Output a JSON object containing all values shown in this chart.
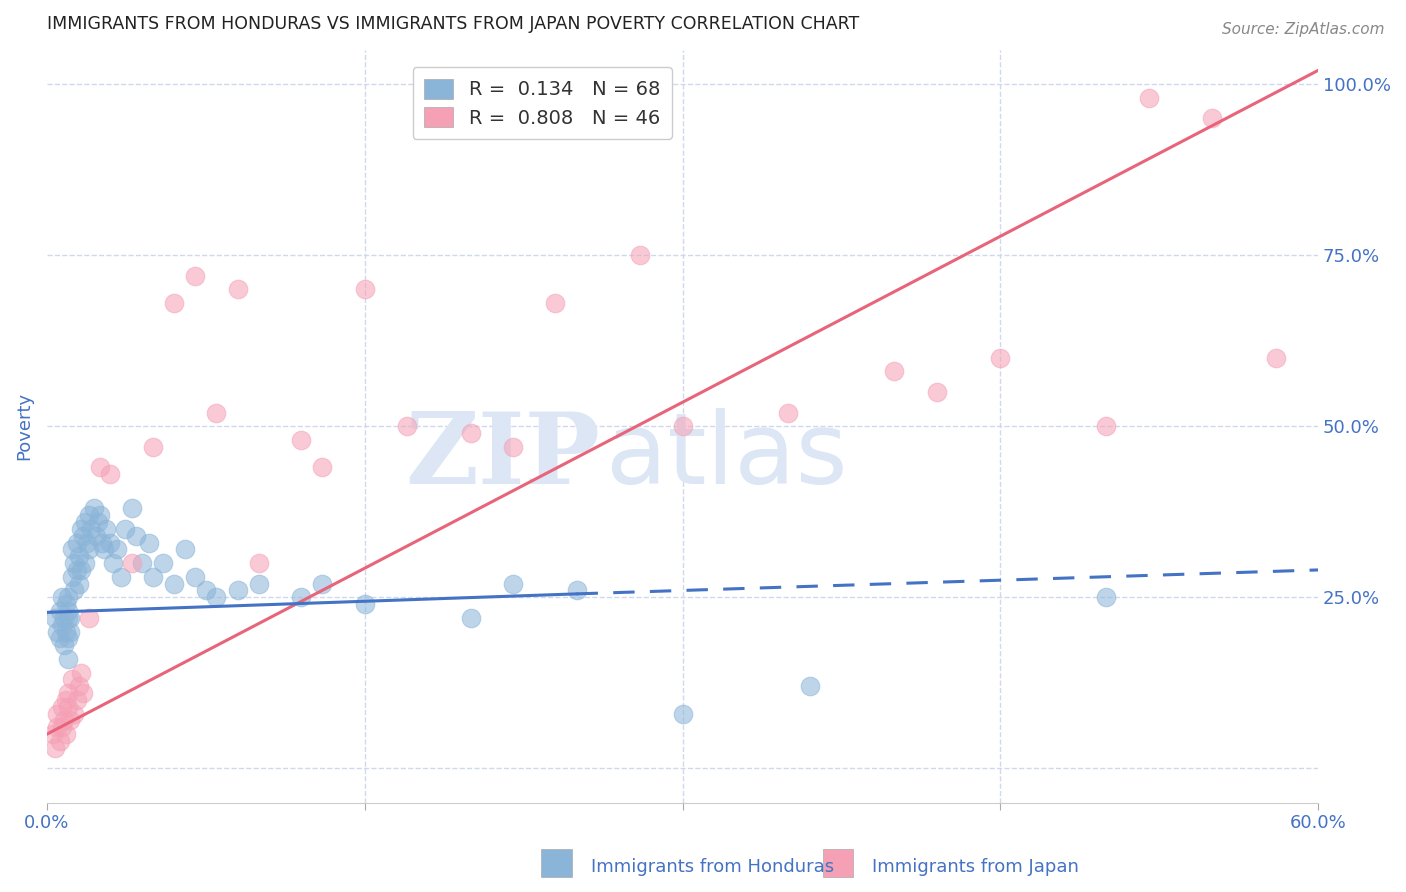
{
  "title": "IMMIGRANTS FROM HONDURAS VS IMMIGRANTS FROM JAPAN POVERTY CORRELATION CHART",
  "source": "Source: ZipAtlas.com",
  "ylabel": "Poverty",
  "xlim": [
    0.0,
    0.6
  ],
  "ylim": [
    -0.05,
    1.05
  ],
  "yticks": [
    0.0,
    0.25,
    0.5,
    0.75,
    1.0
  ],
  "ytick_labels": [
    "",
    "25.0%",
    "50.0%",
    "75.0%",
    "100.0%"
  ],
  "xticks": [
    0.0,
    0.15,
    0.3,
    0.45,
    0.6
  ],
  "xtick_labels": [
    "0.0%",
    "",
    "",
    "",
    "60.0%"
  ],
  "legend_r_honduras": "R =  0.134",
  "legend_n_honduras": "N = 68",
  "legend_r_japan": "R =  0.808",
  "legend_n_japan": "N = 46",
  "color_honduras": "#8ab4d8",
  "color_japan": "#f5a0b5",
  "color_trendline_honduras": "#4472c4",
  "color_trendline_japan": "#e8647a",
  "color_axis_label": "#4472c4",
  "color_tick_label": "#4472c4",
  "watermark_zip": "ZIP",
  "watermark_atlas": "atlas",
  "background_color": "#ffffff",
  "grid_color": "#d0d8ee",
  "honduras_points_x": [
    0.004,
    0.005,
    0.006,
    0.006,
    0.007,
    0.007,
    0.008,
    0.008,
    0.009,
    0.009,
    0.01,
    0.01,
    0.01,
    0.01,
    0.01,
    0.011,
    0.011,
    0.012,
    0.012,
    0.013,
    0.013,
    0.014,
    0.014,
    0.015,
    0.015,
    0.016,
    0.016,
    0.017,
    0.018,
    0.018,
    0.019,
    0.02,
    0.02,
    0.021,
    0.022,
    0.023,
    0.024,
    0.025,
    0.026,
    0.027,
    0.028,
    0.03,
    0.031,
    0.033,
    0.035,
    0.037,
    0.04,
    0.042,
    0.045,
    0.048,
    0.05,
    0.055,
    0.06,
    0.065,
    0.07,
    0.075,
    0.08,
    0.09,
    0.1,
    0.12,
    0.13,
    0.15,
    0.2,
    0.22,
    0.25,
    0.3,
    0.36,
    0.5
  ],
  "honduras_points_y": [
    0.22,
    0.2,
    0.23,
    0.19,
    0.25,
    0.21,
    0.22,
    0.18,
    0.24,
    0.2,
    0.22,
    0.19,
    0.16,
    0.23,
    0.25,
    0.2,
    0.22,
    0.28,
    0.32,
    0.26,
    0.3,
    0.29,
    0.33,
    0.31,
    0.27,
    0.35,
    0.29,
    0.34,
    0.36,
    0.3,
    0.33,
    0.37,
    0.32,
    0.35,
    0.38,
    0.34,
    0.36,
    0.37,
    0.33,
    0.32,
    0.35,
    0.33,
    0.3,
    0.32,
    0.28,
    0.35,
    0.38,
    0.34,
    0.3,
    0.33,
    0.28,
    0.3,
    0.27,
    0.32,
    0.28,
    0.26,
    0.25,
    0.26,
    0.27,
    0.25,
    0.27,
    0.24,
    0.22,
    0.27,
    0.26,
    0.08,
    0.12,
    0.25
  ],
  "japan_points_x": [
    0.003,
    0.004,
    0.005,
    0.005,
    0.006,
    0.007,
    0.007,
    0.008,
    0.009,
    0.009,
    0.01,
    0.01,
    0.011,
    0.012,
    0.013,
    0.014,
    0.015,
    0.016,
    0.017,
    0.02,
    0.025,
    0.03,
    0.04,
    0.05,
    0.07,
    0.08,
    0.09,
    0.1,
    0.13,
    0.15,
    0.17,
    0.2,
    0.22,
    0.24,
    0.28,
    0.3,
    0.35,
    0.4,
    0.42,
    0.45,
    0.5,
    0.52,
    0.55,
    0.58,
    0.06,
    0.12
  ],
  "japan_points_y": [
    0.05,
    0.03,
    0.08,
    0.06,
    0.04,
    0.09,
    0.06,
    0.07,
    0.1,
    0.05,
    0.09,
    0.11,
    0.07,
    0.13,
    0.08,
    0.1,
    0.12,
    0.14,
    0.11,
    0.22,
    0.44,
    0.43,
    0.3,
    0.47,
    0.72,
    0.52,
    0.7,
    0.3,
    0.44,
    0.7,
    0.5,
    0.49,
    0.47,
    0.68,
    0.75,
    0.5,
    0.52,
    0.58,
    0.55,
    0.6,
    0.5,
    0.98,
    0.95,
    0.6,
    0.68,
    0.48
  ],
  "trendline_japan_x0": 0.0,
  "trendline_japan_y0": 0.05,
  "trendline_japan_x1": 0.6,
  "trendline_japan_y1": 1.02,
  "trendline_honduras_solid_x0": 0.0,
  "trendline_honduras_solid_y0": 0.228,
  "trendline_honduras_solid_x1": 0.25,
  "trendline_honduras_solid_y1": 0.255,
  "trendline_honduras_dash_x0": 0.25,
  "trendline_honduras_dash_y0": 0.255,
  "trendline_honduras_dash_x1": 0.6,
  "trendline_honduras_dash_y1": 0.29
}
